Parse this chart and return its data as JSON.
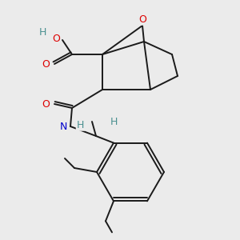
{
  "background_color": "#ebebeb",
  "atom_colors": {
    "O": "#dd0000",
    "N": "#0000cc",
    "C": "#1a1a1a",
    "H": "#4a9090"
  },
  "figsize": [
    3.0,
    3.0
  ],
  "dpi": 100,
  "bond_lw": 1.4,
  "bond_color": "#1a1a1a"
}
